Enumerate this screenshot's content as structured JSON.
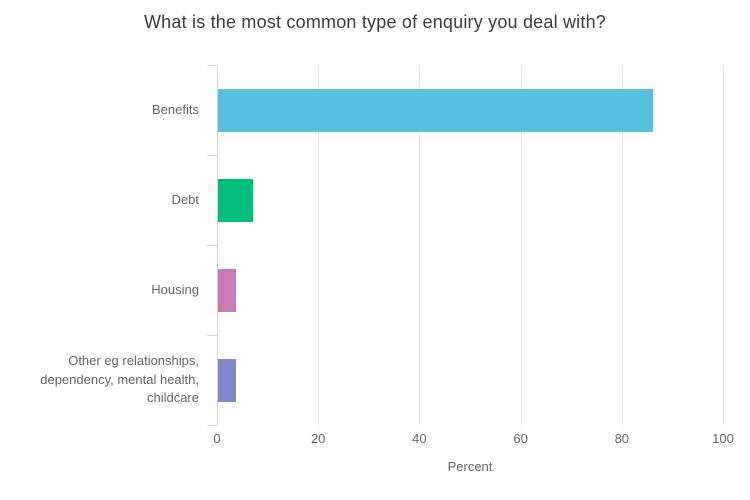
{
  "chart_data": {
    "type": "bar",
    "orientation": "horizontal",
    "title": "What is the most common type of enquiry you deal with?",
    "categories": [
      "Benefits",
      "Debt",
      "Housing",
      "Other eg relationships, dependency, mental health, childcare"
    ],
    "values": [
      86,
      7,
      3.5,
      3.5
    ],
    "bar_colors": [
      "#55C1DC",
      "#00BF7D",
      "#C77CB5",
      "#8187C9"
    ],
    "xlabel": "Percent",
    "xlim": [
      0,
      100
    ],
    "xticks": [
      0,
      20,
      40,
      60,
      80,
      100
    ],
    "xtick_labels": [
      "0",
      "20",
      "40",
      "60",
      "80",
      "100"
    ],
    "grid": "vertical-only",
    "legend": "none",
    "colors": {
      "title_text": "#3c3c3c",
      "axis_label_text": "#666666",
      "axis_line": "#d4d4d4",
      "gridline": "#e6e6e6",
      "background": "#ffffff"
    }
  }
}
